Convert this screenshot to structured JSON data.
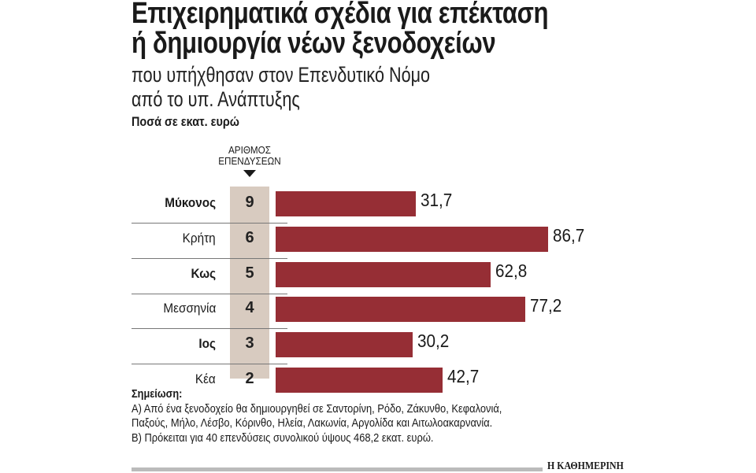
{
  "header": {
    "title_line1": "Επιχειρηματικά σχέδια για επέκταση",
    "title_line2": "ή δημιουργία νέων ξενοδοχείων",
    "subtitle_line1": "που υπήχθησαν στον Επενδυτικό Νόμο",
    "subtitle_line2": "από το υπ. Ανάπτυξης",
    "units": "Ποσά σε εκατ. ευρώ"
  },
  "chart_data": {
    "type": "bar",
    "orientation": "horizontal",
    "count_column_header_line1": "ΑΡΙΘΜΟΣ",
    "count_column_header_line2": "ΕΠΕΝΔΥΣΕΩΝ",
    "categories": [
      "Μύκονος",
      "Κρήτη",
      "Κως",
      "Μεσσηνία",
      "Ιος",
      "Κέα"
    ],
    "bold_categories": [
      "Μύκονος",
      "Κως",
      "Ιος"
    ],
    "counts": [
      "9",
      "6",
      "5",
      "4",
      "3",
      "2"
    ],
    "values": [
      31.7,
      86.7,
      62.8,
      77.2,
      30.2,
      42.7
    ],
    "value_labels": [
      "31,7",
      "86,7",
      "62,8",
      "77,2",
      "30,2",
      "42,7"
    ],
    "bar_color": "#962e35",
    "count_column_color": "#d8cbc0"
  },
  "notes": {
    "heading": "Σημείωση:",
    "a_line1": "Α) Από ένα ξενοδοχείο θα δημιουργηθεί σε Σαντορίνη, Ρόδο, Ζάκυνθο, Κεφαλονιά,",
    "a_line2": "Παξούς, Μήλο, Λέσβο, Κόρινθο,  Ηλεία, Λακωνία, Αργολίδα και Αιτωλοακαρνανία.",
    "b": "Β) Πρόκειται για 40 επενδύσεις συνολικού ύψους 468,2 εκατ. ευρώ."
  },
  "footer": {
    "logo": "Η ΚΑΘΗΜΕΡΙΝΗ"
  }
}
